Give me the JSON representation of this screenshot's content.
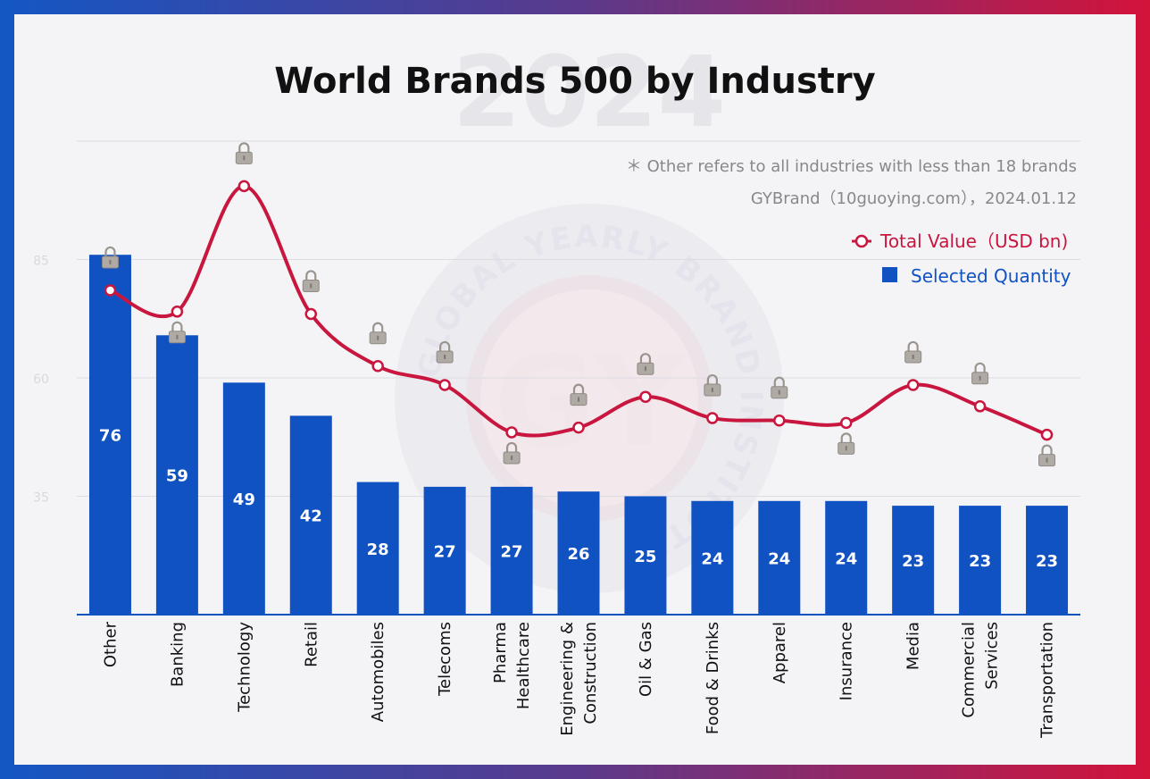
{
  "title": "World Brands 500 by Industry",
  "watermark": {
    "year": "2024",
    "monogram": "GY",
    "ring_text": "GLOBAL YEARLY BRAND INSTITUTE"
  },
  "notes": {
    "footnote": "＊ Other refers to all industries with less than 18 brands",
    "source": "GYBrand（10guoying.com），2024.01.12"
  },
  "legend": {
    "line": "Total Value（USD bn)",
    "bar": "Selected Quantity"
  },
  "colors": {
    "bar": "#1152c2",
    "line": "#c8163e",
    "lock": "#b0aaa4"
  },
  "chart_data": {
    "type": "bar",
    "title": "World Brands 500 by Industry",
    "categories": [
      "Other",
      "Banking",
      "Technology",
      "Retail",
      "Automobiles",
      "Telecoms",
      "Pharma Healthcare",
      "Engineering & Construction",
      "Oil & Gas",
      "Food & Drinks",
      "Apparel",
      "Insurance",
      "Media",
      "Commercial Services",
      "Transportation"
    ],
    "category_lines": [
      [
        "Other"
      ],
      [
        "Banking"
      ],
      [
        "Technology"
      ],
      [
        "Retail"
      ],
      [
        "Automobiles"
      ],
      [
        "Telecoms"
      ],
      [
        "Pharma",
        "Healthcare"
      ],
      [
        "Engineering &",
        "Construction"
      ],
      [
        "Oil & Gas"
      ],
      [
        "Food & Drinks"
      ],
      [
        "Apparel"
      ],
      [
        "Insurance"
      ],
      [
        "Media"
      ],
      [
        "Commercial",
        "Services"
      ],
      [
        "Transportation"
      ]
    ],
    "series": [
      {
        "name": "Selected Quantity",
        "kind": "bar",
        "values": [
          76,
          59,
          49,
          42,
          28,
          27,
          27,
          26,
          25,
          24,
          24,
          24,
          23,
          23,
          23
        ]
      },
      {
        "name": "Total Value（USD bn)",
        "kind": "line",
        "values_hidden": "locked",
        "relative_level": [
          0.685,
          0.64,
          0.905,
          0.635,
          0.525,
          0.485,
          0.385,
          0.395,
          0.46,
          0.415,
          0.41,
          0.405,
          0.485,
          0.44,
          0.38
        ]
      }
    ],
    "yticks": [
      "35",
      "60",
      "85"
    ],
    "ylim": [
      0,
      100
    ],
    "grid": true,
    "legend_position": "top-right"
  }
}
